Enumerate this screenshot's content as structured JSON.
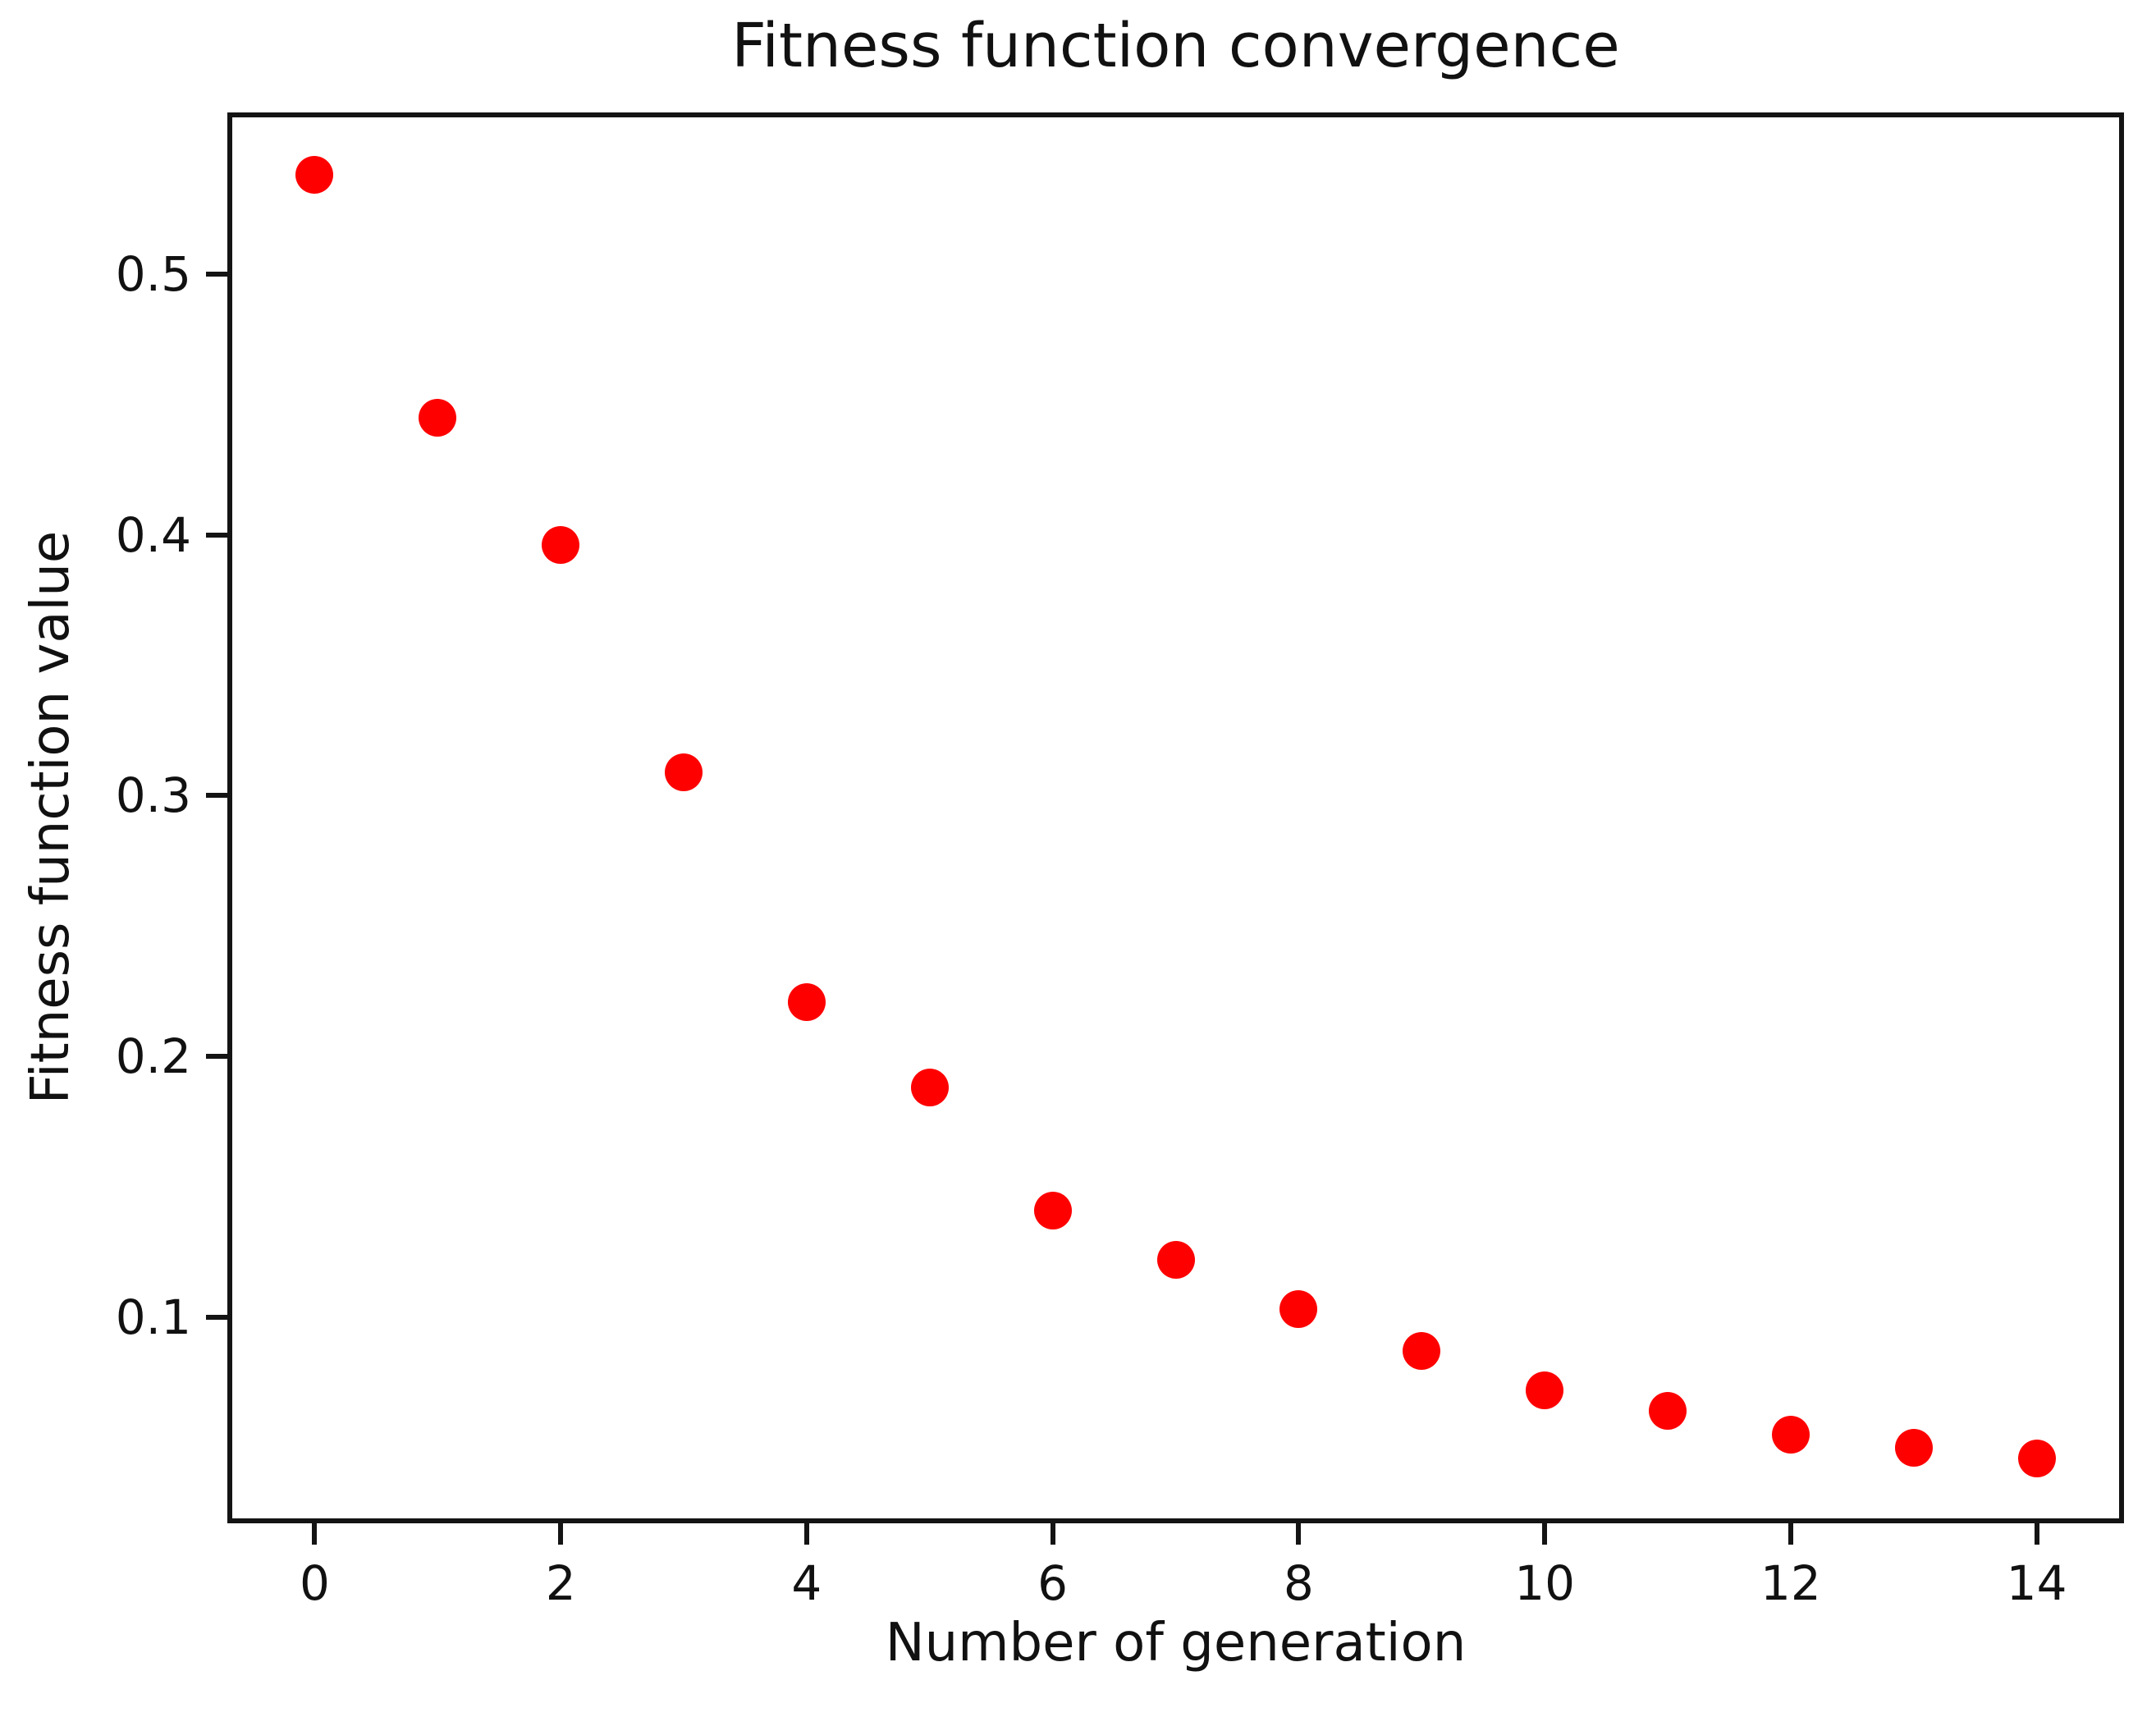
{
  "chart_data": {
    "type": "scatter",
    "title": "Fitness function convergence",
    "xlabel": "Number of generation",
    "ylabel": "Fitness function value",
    "x": [
      0,
      1,
      2,
      3,
      4,
      5,
      6,
      7,
      8,
      9,
      10,
      11,
      12,
      13,
      14
    ],
    "y": [
      0.538,
      0.445,
      0.396,
      0.309,
      0.221,
      0.188,
      0.141,
      0.122,
      0.103,
      0.087,
      0.072,
      0.064,
      0.055,
      0.05,
      0.046
    ],
    "xticks": [
      0,
      2,
      4,
      6,
      8,
      10,
      12,
      14
    ],
    "yticks": [
      0.1,
      0.2,
      0.3,
      0.4,
      0.5
    ],
    "xlim": [
      -0.71,
      14.71
    ],
    "ylim": [
      0.021,
      0.562
    ],
    "grid": false,
    "legend": "none",
    "marker_color": "#ff0000",
    "marker_radius_px": 23,
    "axis_color": "#141414",
    "text_color": "#111111",
    "background_color": "#ffffff"
  }
}
